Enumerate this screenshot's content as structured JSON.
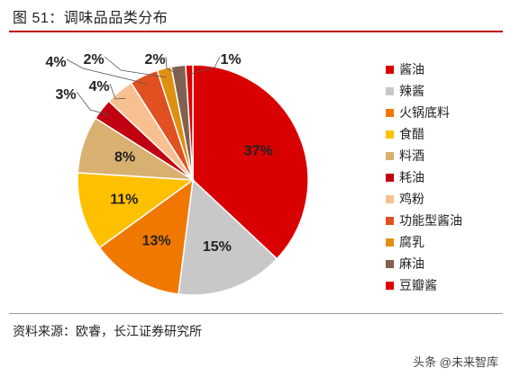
{
  "figure": {
    "title": "图 51：调味品品类分布",
    "source": "资料来源：欧睿，长江证券研究所",
    "watermark": "头条 @未来智库"
  },
  "chart_data": {
    "type": "pie",
    "title": "",
    "start_angle_deg": 0,
    "direction": "clockwise",
    "slices": [
      {
        "label": "酱油",
        "value": 37,
        "display": "37%",
        "color": "#d80000"
      },
      {
        "label": "辣酱",
        "value": 15,
        "display": "15%",
        "color": "#c8c8c8"
      },
      {
        "label": "火锅底料",
        "value": 13,
        "display": "13%",
        "color": "#f07800"
      },
      {
        "label": "食醋",
        "value": 11,
        "display": "11%",
        "color": "#ffc000"
      },
      {
        "label": "料酒",
        "value": 8,
        "display": "8%",
        "color": "#d8b070"
      },
      {
        "label": "耗油",
        "value": 3,
        "display": "3%",
        "color": "#c00010"
      },
      {
        "label": "鸡粉",
        "value": 4,
        "display": "4%",
        "color": "#f8c090"
      },
      {
        "label": "功能型酱油",
        "value": 4,
        "display": "4%",
        "color": "#e05020"
      },
      {
        "label": "腐乳",
        "value": 2,
        "display": "2%",
        "color": "#e09010"
      },
      {
        "label": "麻油",
        "value": 2,
        "display": "2%",
        "color": "#806050"
      },
      {
        "label": "豆瓣酱",
        "value": 1,
        "display": "1%",
        "color": "#e00000"
      }
    ],
    "legend_position": "right"
  }
}
